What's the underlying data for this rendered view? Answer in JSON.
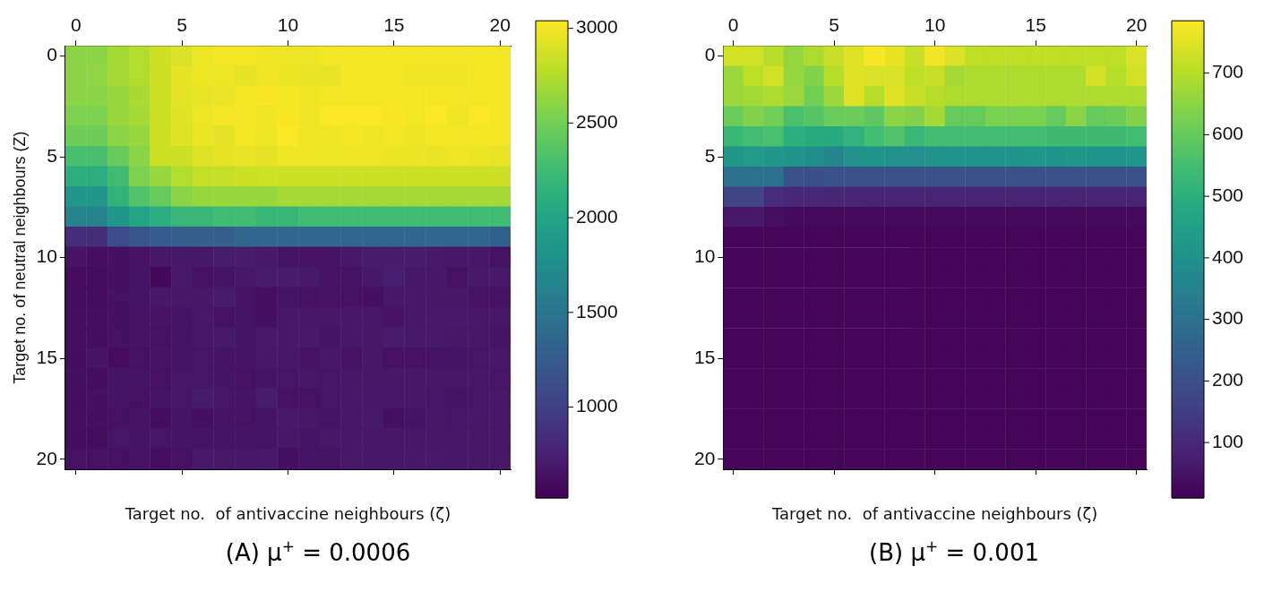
{
  "chart_data": [
    {
      "type": "heatmap",
      "title": "(A) μ$^{+}$ = 0.0006",
      "xlabel": "Target no.  of antivaccine neighbours (ζ)",
      "ylabel": "Target no. of neutral neighbours (Z)",
      "categories": [
        "0",
        null,
        null,
        null,
        null,
        "5",
        null,
        null,
        null,
        null,
        "10",
        null,
        null,
        null,
        null,
        "15",
        null,
        null,
        null,
        null,
        "20"
      ],
      "y_categories": [
        "0",
        null,
        null,
        null,
        null,
        "5",
        null,
        null,
        null,
        null,
        "10",
        null,
        null,
        null,
        null,
        "15",
        null,
        null,
        null,
        null,
        "20"
      ],
      "clim": [
        520,
        3040
      ],
      "cticks": [
        1000,
        1500,
        2000,
        2500,
        3000
      ],
      "cells": [
        [
          2600,
          2600,
          2700,
          2750,
          2850,
          2900,
          2980,
          3000,
          3000,
          2990,
          2980,
          2980,
          3000,
          3000,
          3000,
          3000,
          3000,
          3000,
          3000,
          3000,
          3000
        ],
        [
          2600,
          2620,
          2700,
          2750,
          2850,
          2950,
          2980,
          2980,
          2950,
          2990,
          2970,
          2960,
          2960,
          3000,
          3000,
          3000,
          2990,
          2990,
          2990,
          3000,
          3000
        ],
        [
          2600,
          2600,
          2650,
          2720,
          2850,
          2940,
          2960,
          2970,
          3000,
          3020,
          3000,
          2990,
          3000,
          3000,
          3000,
          3010,
          3000,
          3010,
          3000,
          3000,
          3000
        ],
        [
          2550,
          2550,
          2650,
          2700,
          2850,
          2930,
          2980,
          3010,
          3000,
          2990,
          3020,
          2980,
          3030,
          3030,
          3030,
          3020,
          3000,
          3030,
          2980,
          3030,
          3000
        ],
        [
          2480,
          2480,
          2600,
          2650,
          2850,
          2920,
          2970,
          2940,
          3000,
          2980,
          3030,
          2990,
          2980,
          3000,
          2990,
          3000,
          2980,
          3000,
          3000,
          3000,
          3000
        ],
        [
          2300,
          2300,
          2450,
          2600,
          2850,
          2850,
          2920,
          2950,
          2960,
          2940,
          2980,
          2980,
          2980,
          2980,
          2980,
          2970,
          2970,
          2960,
          2980,
          2970,
          2960
        ],
        [
          2100,
          2100,
          2250,
          2550,
          2650,
          2750,
          2820,
          2820,
          2850,
          2860,
          2850,
          2850,
          2850,
          2850,
          2850,
          2850,
          2850,
          2850,
          2850,
          2850,
          2850
        ],
        [
          1850,
          1850,
          2150,
          2350,
          2450,
          2600,
          2650,
          2650,
          2650,
          2650,
          2700,
          2700,
          2700,
          2700,
          2700,
          2700,
          2700,
          2700,
          2700,
          2700,
          2700
        ],
        [
          1650,
          1650,
          1850,
          2000,
          2100,
          2200,
          2200,
          2250,
          2250,
          2200,
          2200,
          2250,
          2250,
          2250,
          2250,
          2250,
          2250,
          2250,
          2250,
          2250,
          2250
        ],
        [
          850,
          850,
          1100,
          1200,
          1250,
          1300,
          1300,
          1300,
          1350,
          1350,
          1350,
          1350,
          1350,
          1350,
          1350,
          1350,
          1350,
          1350,
          1350,
          1350,
          1300
        ],
        [
          650,
          620,
          630,
          650,
          680,
          680,
          690,
          720,
          720,
          700,
          660,
          650,
          650,
          690,
          710,
          720,
          720,
          700,
          680,
          680,
          640
        ],
        [
          600,
          600,
          620,
          660,
          580,
          700,
          640,
          660,
          690,
          720,
          720,
          700,
          650,
          650,
          690,
          730,
          690,
          690,
          640,
          700,
          700
        ],
        [
          610,
          600,
          640,
          660,
          680,
          680,
          680,
          710,
          650,
          620,
          660,
          640,
          650,
          640,
          630,
          690,
          690,
          680,
          680,
          650,
          640
        ],
        [
          620,
          620,
          630,
          650,
          650,
          660,
          680,
          640,
          660,
          630,
          680,
          680,
          680,
          690,
          690,
          650,
          680,
          700,
          700,
          680,
          680
        ],
        [
          620,
          610,
          640,
          650,
          640,
          660,
          680,
          700,
          660,
          700,
          690,
          700,
          660,
          690,
          680,
          720,
          700,
          700,
          680,
          680,
          650
        ],
        [
          610,
          650,
          600,
          640,
          650,
          660,
          670,
          660,
          660,
          690,
          690,
          650,
          680,
          650,
          680,
          640,
          640,
          660,
          650,
          670,
          680
        ],
        [
          630,
          610,
          660,
          660,
          640,
          670,
          670,
          660,
          640,
          660,
          670,
          680,
          670,
          680,
          680,
          680,
          680,
          680,
          680,
          680,
          670
        ],
        [
          610,
          630,
          660,
          640,
          660,
          670,
          710,
          670,
          660,
          720,
          640,
          640,
          670,
          680,
          690,
          690,
          680,
          670,
          650,
          670,
          680
        ],
        [
          620,
          620,
          640,
          650,
          610,
          660,
          630,
          660,
          640,
          660,
          700,
          680,
          660,
          680,
          700,
          630,
          660,
          680,
          670,
          680,
          680
        ],
        [
          610,
          600,
          670,
          660,
          670,
          660,
          660,
          660,
          660,
          660,
          680,
          660,
          680,
          690,
          690,
          680,
          680,
          680,
          680,
          680,
          680
        ],
        [
          640,
          640,
          640,
          650,
          620,
          640,
          700,
          680,
          690,
          700,
          630,
          660,
          650,
          680,
          690,
          690,
          690,
          700,
          690,
          680,
          680
        ]
      ]
    },
    {
      "type": "heatmap",
      "title": "(B) μ$^{+}$ = 0.001",
      "xlabel": "Target no.  of antivaccine neighbours (ζ)",
      "categories": [
        "0",
        null,
        null,
        null,
        null,
        "5",
        null,
        null,
        null,
        null,
        "10",
        null,
        null,
        null,
        null,
        "15",
        null,
        null,
        null,
        null,
        "20"
      ],
      "y_categories": [
        "0",
        null,
        null,
        null,
        null,
        "5",
        null,
        null,
        null,
        null,
        "10",
        null,
        null,
        null,
        null,
        "15",
        null,
        null,
        null,
        null,
        "20"
      ],
      "clim": [
        10,
        785
      ],
      "cticks": [
        100,
        200,
        300,
        400,
        500,
        600,
        700
      ],
      "cells": [
        [
          730,
          730,
          700,
          660,
          690,
          720,
          750,
          780,
          760,
          720,
          770,
          740,
          710,
          710,
          710,
          710,
          710,
          710,
          710,
          710,
          740
        ],
        [
          670,
          710,
          730,
          660,
          640,
          700,
          750,
          740,
          740,
          710,
          720,
          680,
          690,
          690,
          690,
          690,
          690,
          690,
          730,
          700,
          730
        ],
        [
          670,
          680,
          690,
          670,
          620,
          670,
          750,
          700,
          750,
          720,
          700,
          690,
          690,
          690,
          690,
          690,
          690,
          690,
          690,
          690,
          690
        ],
        [
          610,
          640,
          620,
          560,
          580,
          610,
          610,
          590,
          650,
          640,
          680,
          600,
          600,
          630,
          630,
          630,
          600,
          650,
          600,
          610,
          640
        ],
        [
          530,
          550,
          560,
          500,
          490,
          490,
          510,
          550,
          570,
          530,
          550,
          550,
          550,
          550,
          550,
          550,
          540,
          540,
          540,
          540,
          550
        ],
        [
          420,
          430,
          420,
          410,
          390,
          370,
          400,
          410,
          400,
          400,
          410,
          410,
          410,
          410,
          410,
          420,
          410,
          420,
          410,
          410,
          420
        ],
        [
          300,
          300,
          300,
          210,
          200,
          210,
          210,
          210,
          210,
          210,
          210,
          210,
          210,
          210,
          210,
          210,
          210,
          210,
          210,
          210,
          210
        ],
        [
          170,
          170,
          110,
          100,
          100,
          95,
          95,
          90,
          90,
          90,
          90,
          90,
          90,
          90,
          90,
          90,
          90,
          90,
          90,
          90,
          90
        ],
        [
          60,
          60,
          40,
          30,
          30,
          30,
          30,
          30,
          30,
          30,
          30,
          30,
          30,
          30,
          30,
          30,
          30,
          30,
          30,
          30,
          30
        ],
        [
          20,
          20,
          20,
          20,
          20,
          20,
          20,
          20,
          20,
          20,
          20,
          20,
          20,
          20,
          20,
          20,
          20,
          20,
          20,
          20,
          20
        ],
        [
          20,
          20,
          20,
          20,
          20,
          20,
          20,
          20,
          20,
          20,
          20,
          20,
          20,
          20,
          20,
          20,
          20,
          20,
          20,
          20,
          20
        ],
        [
          20,
          20,
          20,
          20,
          20,
          20,
          20,
          20,
          20,
          20,
          20,
          20,
          20,
          20,
          20,
          20,
          20,
          20,
          20,
          20,
          20
        ],
        [
          20,
          20,
          20,
          20,
          20,
          20,
          20,
          20,
          20,
          20,
          20,
          20,
          20,
          20,
          20,
          20,
          20,
          20,
          20,
          20,
          20
        ],
        [
          20,
          20,
          20,
          20,
          20,
          20,
          20,
          20,
          20,
          20,
          20,
          20,
          20,
          20,
          20,
          20,
          20,
          20,
          20,
          20,
          20
        ],
        [
          20,
          20,
          20,
          20,
          20,
          20,
          20,
          20,
          20,
          20,
          20,
          20,
          20,
          20,
          20,
          20,
          20,
          20,
          20,
          20,
          20
        ],
        [
          20,
          20,
          20,
          20,
          20,
          20,
          20,
          20,
          20,
          20,
          20,
          20,
          20,
          20,
          20,
          20,
          20,
          20,
          20,
          20,
          20
        ],
        [
          20,
          20,
          20,
          20,
          20,
          20,
          20,
          20,
          20,
          20,
          20,
          20,
          20,
          20,
          20,
          20,
          20,
          20,
          20,
          20,
          20
        ],
        [
          20,
          20,
          20,
          20,
          20,
          20,
          20,
          20,
          20,
          20,
          20,
          20,
          20,
          20,
          20,
          20,
          20,
          20,
          20,
          20,
          20
        ],
        [
          20,
          20,
          20,
          20,
          20,
          20,
          20,
          20,
          20,
          20,
          20,
          20,
          20,
          20,
          20,
          20,
          20,
          20,
          20,
          20,
          20
        ],
        [
          20,
          20,
          20,
          20,
          20,
          20,
          20,
          20,
          20,
          20,
          20,
          20,
          20,
          20,
          20,
          20,
          20,
          20,
          20,
          20,
          20
        ],
        [
          20,
          20,
          20,
          20,
          20,
          20,
          20,
          20,
          20,
          20,
          20,
          20,
          20,
          20,
          20,
          20,
          20,
          20,
          20,
          20,
          20
        ]
      ]
    }
  ]
}
